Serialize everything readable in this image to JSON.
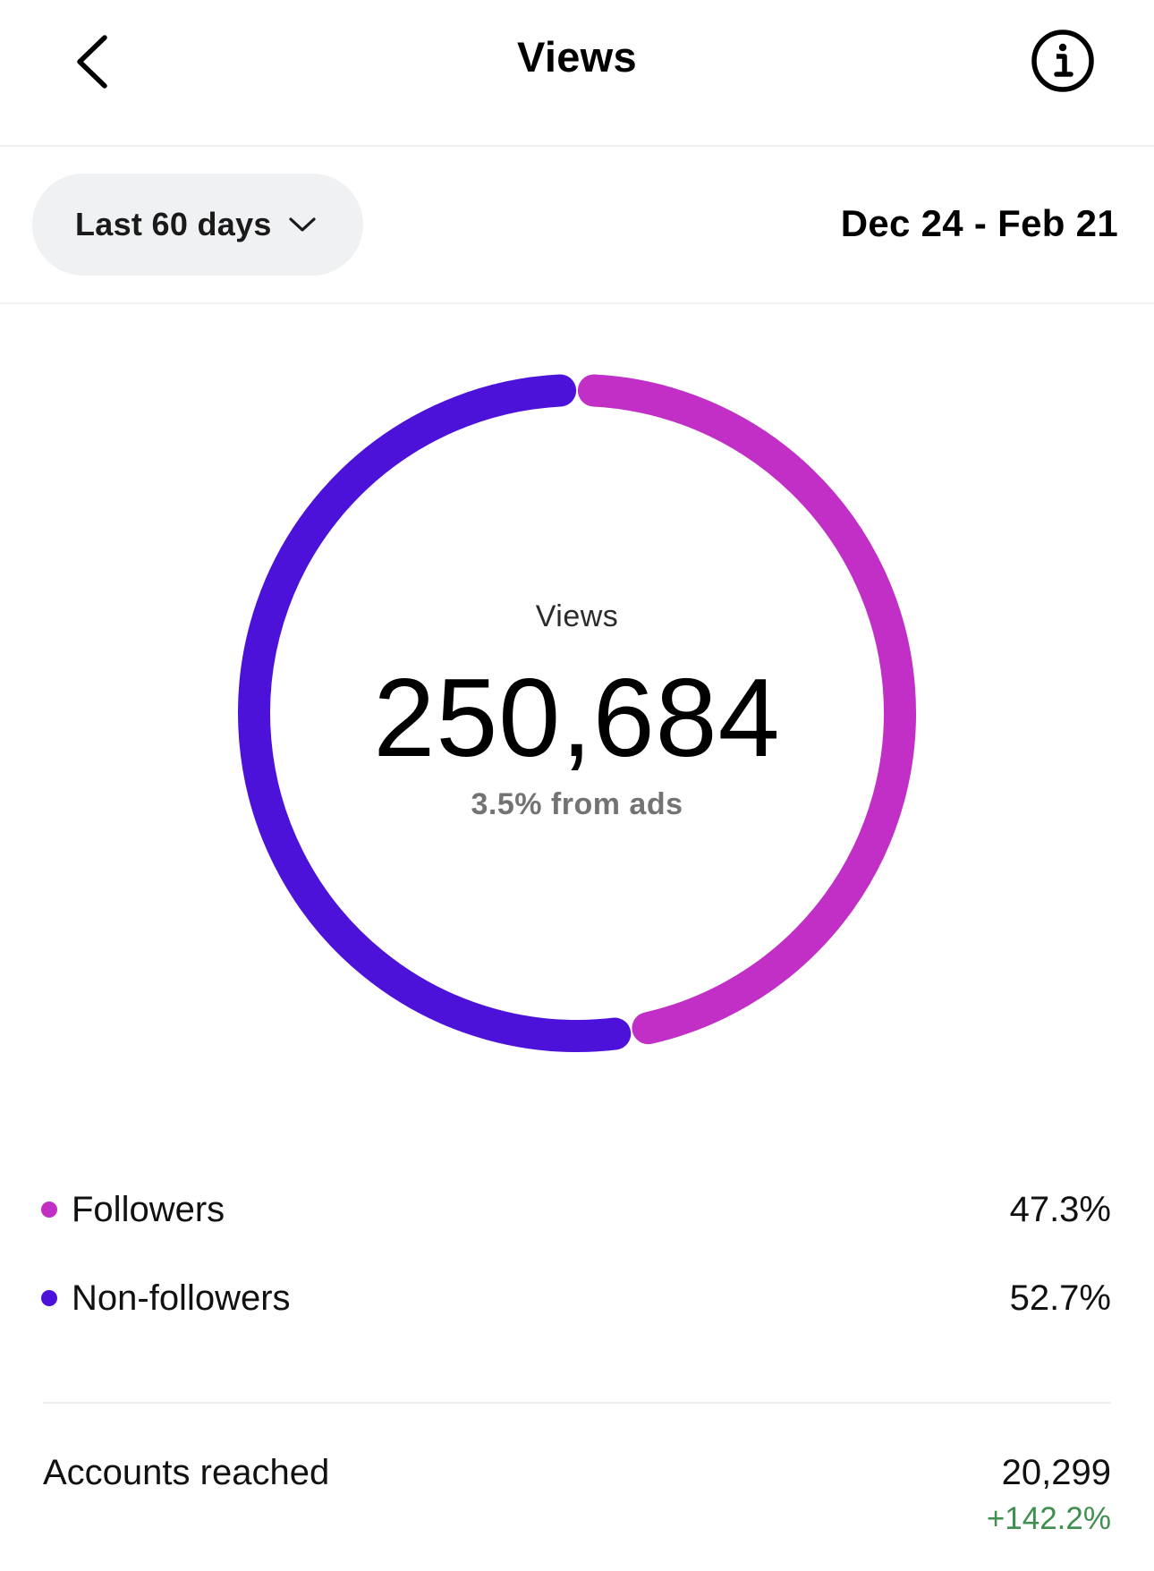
{
  "header": {
    "title": "Views",
    "back_icon": "chevron-left-icon",
    "info_icon": "info-icon"
  },
  "range": {
    "selected": "Last 60 days",
    "dropdown_icon": "chevron-down-icon",
    "dates": "Dec 24 - Feb 21"
  },
  "summary": {
    "label": "Views",
    "value": "250,684",
    "sub": "3.5% from ads"
  },
  "chart_data": {
    "type": "pie",
    "series": [
      {
        "name": "Followers",
        "percent": 47.3,
        "color": "#c12fc6"
      },
      {
        "name": "Non-followers",
        "percent": 52.7,
        "color": "#4d12da"
      }
    ]
  },
  "legend": [
    {
      "label": "Followers",
      "value": "47.3%",
      "color": "#c12fc6"
    },
    {
      "label": "Non-followers",
      "value": "52.7%",
      "color": "#4d12da"
    }
  ],
  "accounts_reached": {
    "label": "Accounts reached",
    "value": "20,299",
    "change": "+142.2%",
    "change_color": "#3f8f4f"
  }
}
